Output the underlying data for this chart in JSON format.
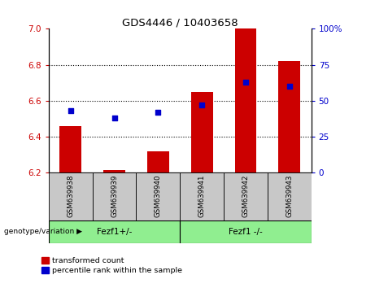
{
  "title": "GDS4446 / 10403658",
  "samples": [
    "GSM639938",
    "GSM639939",
    "GSM639940",
    "GSM639941",
    "GSM639942",
    "GSM639943"
  ],
  "red_bar_tops": [
    6.46,
    6.215,
    6.32,
    6.65,
    7.0,
    6.82
  ],
  "blue_dot_pct": [
    43,
    38,
    42,
    47,
    63,
    60
  ],
  "bar_bottom": 6.2,
  "ylim_left": [
    6.2,
    7.0
  ],
  "ylim_right": [
    0,
    100
  ],
  "yticks_left": [
    6.2,
    6.4,
    6.6,
    6.8,
    7.0
  ],
  "yticks_right": [
    0,
    25,
    50,
    75,
    100
  ],
  "ytick_labels_right": [
    "0",
    "25",
    "50",
    "75",
    "100%"
  ],
  "group1_label": "Fezf1+/-",
  "group2_label": "Fezf1 -/-",
  "genotype_label": "genotype/variation",
  "red_color": "#CC0000",
  "blue_color": "#0000CC",
  "bar_bg_color": "#C8C8C8",
  "group_bg_color": "#90EE90",
  "legend_red_label": "transformed count",
  "legend_blue_label": "percentile rank within the sample"
}
